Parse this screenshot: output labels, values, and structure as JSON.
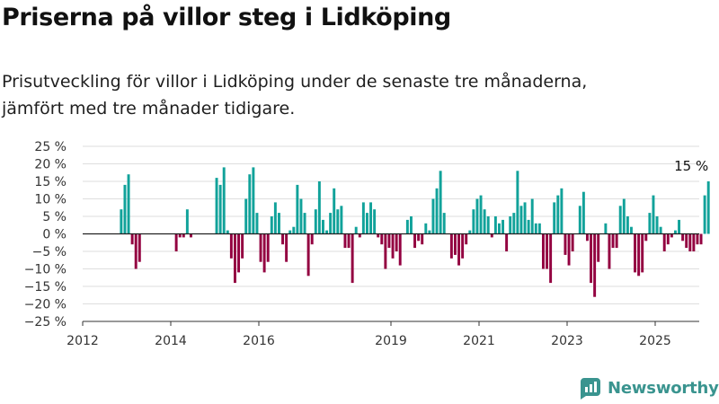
{
  "title": "Priserna på villor steg i Lidköping",
  "subtitle_line1": "Prisutveckling för villor i Lidköping under de senaste tre månaderna,",
  "subtitle_line2": "jämfört med tre månader tidigare.",
  "brand": {
    "name": "Newsworthy",
    "icon": "newsworthy-logo-icon"
  },
  "colors": {
    "positive": "#11a29a",
    "negative": "#930040",
    "grid": "#dedede",
    "zero": "#222222"
  },
  "chart_data": {
    "type": "bar",
    "start": "2012-11",
    "frequency": "monthly",
    "title": "",
    "xlabel": "",
    "ylabel": "",
    "ylim": [
      -25,
      25
    ],
    "yticks": [
      25,
      20,
      15,
      10,
      5,
      0,
      -5,
      -10,
      -15,
      -20,
      -25
    ],
    "ytick_labels": [
      "25 %",
      "20 %",
      "15 %",
      "10 %",
      "5 %",
      "0 %",
      "−5 %",
      "−10 %",
      "−15 %",
      "−20 %",
      "−25 %"
    ],
    "xticks": [
      "2012",
      "2014",
      "2016",
      "2019",
      "2021",
      "2023",
      "2025"
    ],
    "grid": true,
    "last_label": "15 %",
    "values": [
      7,
      14,
      17,
      -3,
      -10,
      -8,
      0,
      0,
      0,
      0,
      0,
      0,
      0,
      0,
      0,
      -5,
      -1,
      -1,
      7,
      -1,
      0,
      0,
      0,
      0,
      0,
      0,
      16,
      14,
      19,
      1,
      -7,
      -14,
      -11,
      -7,
      10,
      17,
      19,
      6,
      -8,
      -11,
      -8,
      5,
      9,
      6,
      -3,
      -8,
      1,
      2,
      14,
      10,
      6,
      -12,
      -3,
      7,
      15,
      4,
      1,
      6,
      13,
      7,
      8,
      -4,
      -4,
      -14,
      2,
      -1,
      9,
      6,
      9,
      7,
      -1,
      -3,
      -10,
      -4,
      -7,
      -5,
      -9,
      0,
      4,
      5,
      -4,
      -2,
      -3,
      3,
      1,
      10,
      13,
      18,
      6,
      0,
      -7,
      -6,
      -9,
      -7,
      -3,
      1,
      7,
      10,
      11,
      7,
      5,
      -1,
      5,
      3,
      4,
      -5,
      5,
      6,
      18,
      8,
      9,
      4,
      10,
      3,
      3,
      -10,
      -10,
      -14,
      9,
      11,
      13,
      -6,
      -9,
      -5,
      0,
      8,
      12,
      -2,
      -14,
      -18,
      -8,
      0,
      3,
      -10,
      -4,
      -4,
      8,
      10,
      5,
      2,
      -11,
      -12,
      -11,
      -2,
      6,
      11,
      5,
      2,
      -5,
      -3,
      -1,
      1,
      4,
      -2,
      -4,
      -5,
      -5,
      -3,
      -3,
      11,
      15
    ]
  }
}
